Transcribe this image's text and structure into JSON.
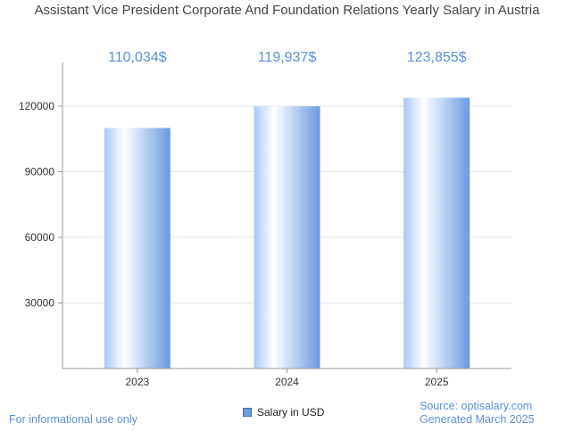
{
  "chart_data": {
    "type": "bar",
    "title": "Assistant Vice President Corporate And Foundation Relations Yearly Salary in Austria",
    "categories": [
      "2023",
      "2024",
      "2025"
    ],
    "series": [
      {
        "name": "Salary in USD",
        "values": [
          110034,
          119937,
          123855
        ]
      }
    ],
    "data_labels": [
      "110,034$",
      "119,937$",
      "123,855$"
    ],
    "y_ticks": [
      "30000",
      "60000",
      "90000",
      "120000"
    ],
    "ylim": [
      0,
      140000
    ],
    "grid": true,
    "legend_position": "bottom",
    "bar_color": "#6a9ae0",
    "label_color": "#5b8fd6"
  },
  "footer": {
    "disclaimer": "For informational use only",
    "source": "Source: optisalary.com",
    "generated": "Generated March 2025"
  }
}
